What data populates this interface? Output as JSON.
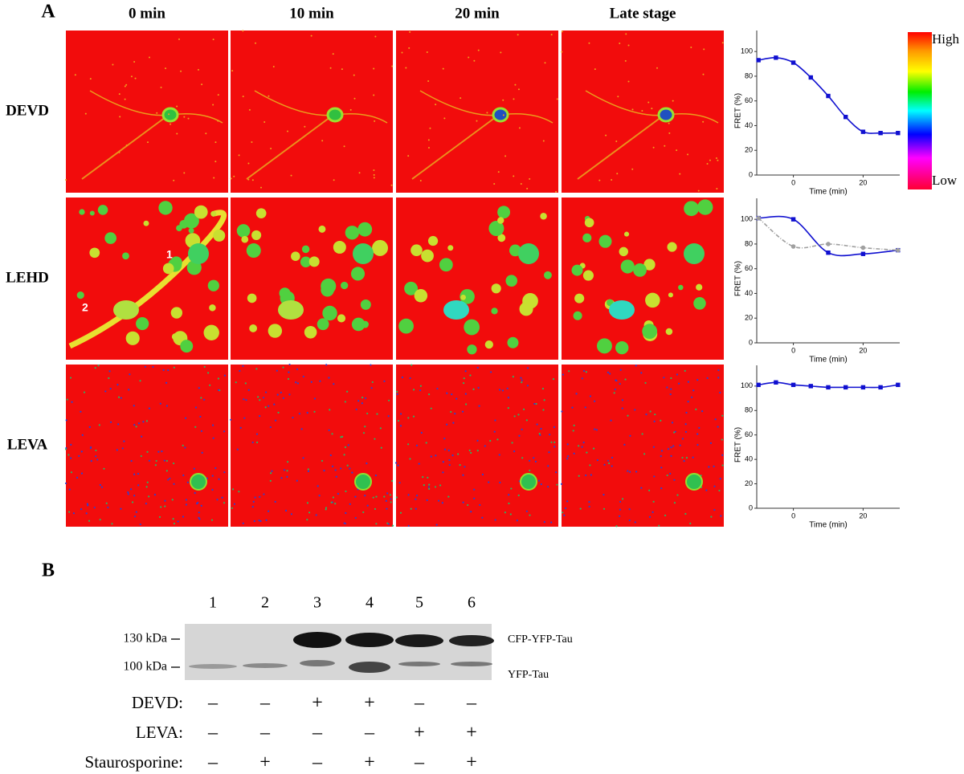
{
  "panel_a": {
    "label": "A",
    "columns": [
      "0 min",
      "10 min",
      "20 min",
      "Late stage"
    ],
    "rows": [
      "DEVD",
      "LEHD",
      "LEVA"
    ],
    "colorbar": {
      "high": "High",
      "low": "Low"
    }
  },
  "chart_data": [
    {
      "type": "line",
      "x_label": "Time (min)",
      "y_label": "FRET (%)",
      "x": [
        -10,
        -5,
        0,
        5,
        10,
        15,
        20,
        25,
        30
      ],
      "series": [
        {
          "color": "#1010d0",
          "marker": "square",
          "linestyle": "solid",
          "values": [
            93,
            95,
            91,
            79,
            64,
            47,
            35,
            34,
            34
          ]
        }
      ],
      "xlim": [
        -10.5,
        30.5
      ],
      "xticks": [
        0,
        20
      ],
      "ylim": [
        0,
        117
      ],
      "yticks": [
        0,
        20,
        40,
        60,
        80,
        100
      ]
    },
    {
      "type": "line",
      "x_label": "Time (min)",
      "y_label": "FRET (%)",
      "x": [
        -10,
        0,
        10,
        20,
        30
      ],
      "series": [
        {
          "color": "#1010d0",
          "marker": "square",
          "linestyle": "solid",
          "values": [
            101,
            100,
            73,
            72,
            75
          ]
        },
        {
          "color": "#a0a0a0",
          "marker": "circle",
          "linestyle": "dashed",
          "values": [
            101,
            78,
            80,
            77,
            75
          ]
        }
      ],
      "xlim": [
        -10.5,
        30.5
      ],
      "xticks": [
        0,
        20
      ],
      "ylim": [
        0,
        117
      ],
      "yticks": [
        0,
        20,
        40,
        60,
        80,
        100
      ]
    },
    {
      "type": "line",
      "x_label": "Time (min)",
      "y_label": "FRET (%)",
      "x": [
        -10,
        -5,
        0,
        5,
        10,
        15,
        20,
        25,
        30
      ],
      "series": [
        {
          "color": "#1010d0",
          "marker": "square",
          "linestyle": "solid",
          "values": [
            101,
            103,
            101,
            100,
            99,
            99,
            99,
            99,
            101
          ]
        }
      ],
      "xlim": [
        -10.5,
        30.5
      ],
      "xticks": [
        0,
        20
      ],
      "ylim": [
        0,
        117
      ],
      "yticks": [
        0,
        20,
        40,
        60,
        80,
        100
      ]
    }
  ],
  "panel_b": {
    "label": "B",
    "lanes": [
      "1",
      "2",
      "3",
      "4",
      "5",
      "6"
    ],
    "markers": [
      "130 kDa",
      "100 kDa"
    ],
    "bands": [
      "CFP-YFP-Tau",
      "YFP-Tau"
    ],
    "treatments": [
      {
        "label": "DEVD:",
        "signs": [
          "–",
          "–",
          "+",
          "+",
          "–",
          "–"
        ]
      },
      {
        "label": "LEVA:",
        "signs": [
          "–",
          "–",
          "–",
          "–",
          "+",
          "+"
        ]
      },
      {
        "label": "Staurosporine:",
        "signs": [
          "–",
          "+",
          "–",
          "+",
          "–",
          "+"
        ]
      }
    ]
  }
}
